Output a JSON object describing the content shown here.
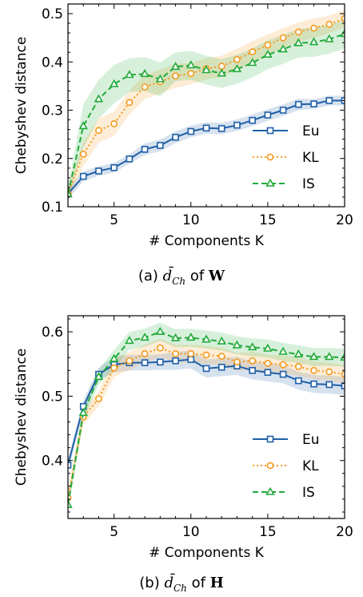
{
  "colors": {
    "Eu": "#1f5fa8",
    "KL": "#f59a1e",
    "IS": "#22aa3a"
  },
  "chart_data": [
    {
      "type": "line",
      "caption": {
        "prefix": "(a) ",
        "symbol": "d̄",
        "subscript": "Ch",
        "mid": " of ",
        "matrix": "W"
      },
      "xlabel": "# Components K",
      "ylabel": "Chebyshev distance",
      "xlim": [
        2,
        20
      ],
      "ylim": [
        0.1,
        0.52
      ],
      "xticks": [
        5,
        10,
        15,
        20
      ],
      "yticks": [
        0.1,
        0.2,
        0.3,
        0.4,
        0.5
      ],
      "ytick_labels": [
        "0.1",
        "0.2",
        "0.3",
        "0.4",
        "0.5"
      ],
      "legend": "lower-right",
      "x": [
        2,
        3,
        4,
        5,
        6,
        7,
        8,
        9,
        10,
        11,
        12,
        13,
        14,
        15,
        16,
        17,
        18,
        19,
        20
      ],
      "series": [
        {
          "name": "Eu",
          "style": "solid",
          "marker": "square",
          "values": [
            0.127,
            0.163,
            0.174,
            0.181,
            0.199,
            0.219,
            0.227,
            0.244,
            0.256,
            0.263,
            0.262,
            0.269,
            0.279,
            0.29,
            0.3,
            0.312,
            0.313,
            0.32,
            0.32
          ],
          "band": [
            0.012,
            0.01,
            0.01,
            0.01,
            0.01,
            0.012,
            0.012,
            0.012,
            0.012,
            0.012,
            0.012,
            0.012,
            0.012,
            0.012,
            0.012,
            0.012,
            0.01,
            0.01,
            0.01
          ]
        },
        {
          "name": "KL",
          "style": "dotted",
          "marker": "circle",
          "values": [
            0.127,
            0.209,
            0.258,
            0.272,
            0.316,
            0.348,
            0.359,
            0.371,
            0.376,
            0.386,
            0.391,
            0.405,
            0.421,
            0.435,
            0.45,
            0.462,
            0.47,
            0.478,
            0.49
          ],
          "band": [
            0.015,
            0.025,
            0.025,
            0.025,
            0.025,
            0.025,
            0.025,
            0.025,
            0.022,
            0.022,
            0.022,
            0.022,
            0.022,
            0.022,
            0.02,
            0.02,
            0.02,
            0.018,
            0.018
          ]
        },
        {
          "name": "IS",
          "style": "dashed",
          "marker": "triangle",
          "values": [
            0.126,
            0.267,
            0.323,
            0.354,
            0.373,
            0.375,
            0.364,
            0.39,
            0.393,
            0.383,
            0.376,
            0.385,
            0.398,
            0.415,
            0.426,
            0.439,
            0.441,
            0.447,
            0.458
          ],
          "band": [
            0.015,
            0.045,
            0.04,
            0.04,
            0.035,
            0.035,
            0.035,
            0.03,
            0.03,
            0.03,
            0.03,
            0.03,
            0.03,
            0.03,
            0.03,
            0.03,
            0.03,
            0.03,
            0.03
          ]
        }
      ]
    },
    {
      "type": "line",
      "caption": {
        "prefix": "(b) ",
        "symbol": "d̄",
        "subscript": "Ch",
        "mid": " of ",
        "matrix": "H"
      },
      "xlabel": "# Components K",
      "ylabel": "Chebyshev distance",
      "xlim": [
        2,
        20
      ],
      "ylim": [
        0.31,
        0.625
      ],
      "xticks": [
        5,
        10,
        15,
        20
      ],
      "yticks": [
        0.4,
        0.5,
        0.6
      ],
      "ytick_labels": [
        "0.4",
        "0.5",
        "0.6"
      ],
      "legend": "lower-right",
      "x": [
        2,
        3,
        4,
        5,
        6,
        7,
        8,
        9,
        10,
        11,
        12,
        13,
        14,
        15,
        16,
        17,
        18,
        19,
        20
      ],
      "series": [
        {
          "name": "Eu",
          "style": "solid",
          "marker": "square",
          "values": [
            0.393,
            0.484,
            0.534,
            0.549,
            0.552,
            0.552,
            0.553,
            0.555,
            0.557,
            0.543,
            0.545,
            0.547,
            0.54,
            0.537,
            0.534,
            0.524,
            0.519,
            0.518,
            0.516
          ],
          "band": [
            0.01,
            0.01,
            0.01,
            0.012,
            0.012,
            0.012,
            0.012,
            0.014,
            0.014,
            0.014,
            0.014,
            0.014,
            0.014,
            0.014,
            0.014,
            0.014,
            0.014,
            0.014,
            0.014
          ]
        },
        {
          "name": "KL",
          "style": "dotted",
          "marker": "circle",
          "values": [
            0.342,
            0.468,
            0.496,
            0.544,
            0.555,
            0.566,
            0.575,
            0.566,
            0.566,
            0.564,
            0.562,
            0.553,
            0.555,
            0.551,
            0.549,
            0.546,
            0.54,
            0.538,
            0.534
          ],
          "band": [
            0.012,
            0.012,
            0.012,
            0.014,
            0.014,
            0.014,
            0.014,
            0.014,
            0.014,
            0.014,
            0.014,
            0.014,
            0.014,
            0.014,
            0.014,
            0.014,
            0.014,
            0.014,
            0.014
          ]
        },
        {
          "name": "IS",
          "style": "dashed",
          "marker": "triangle",
          "values": [
            0.331,
            0.474,
            0.53,
            0.558,
            0.586,
            0.591,
            0.6,
            0.59,
            0.591,
            0.588,
            0.585,
            0.579,
            0.576,
            0.574,
            0.569,
            0.565,
            0.561,
            0.561,
            0.56
          ],
          "band": [
            0.01,
            0.012,
            0.012,
            0.014,
            0.014,
            0.014,
            0.014,
            0.014,
            0.014,
            0.014,
            0.014,
            0.014,
            0.014,
            0.014,
            0.014,
            0.014,
            0.014,
            0.014,
            0.014
          ]
        }
      ]
    }
  ]
}
